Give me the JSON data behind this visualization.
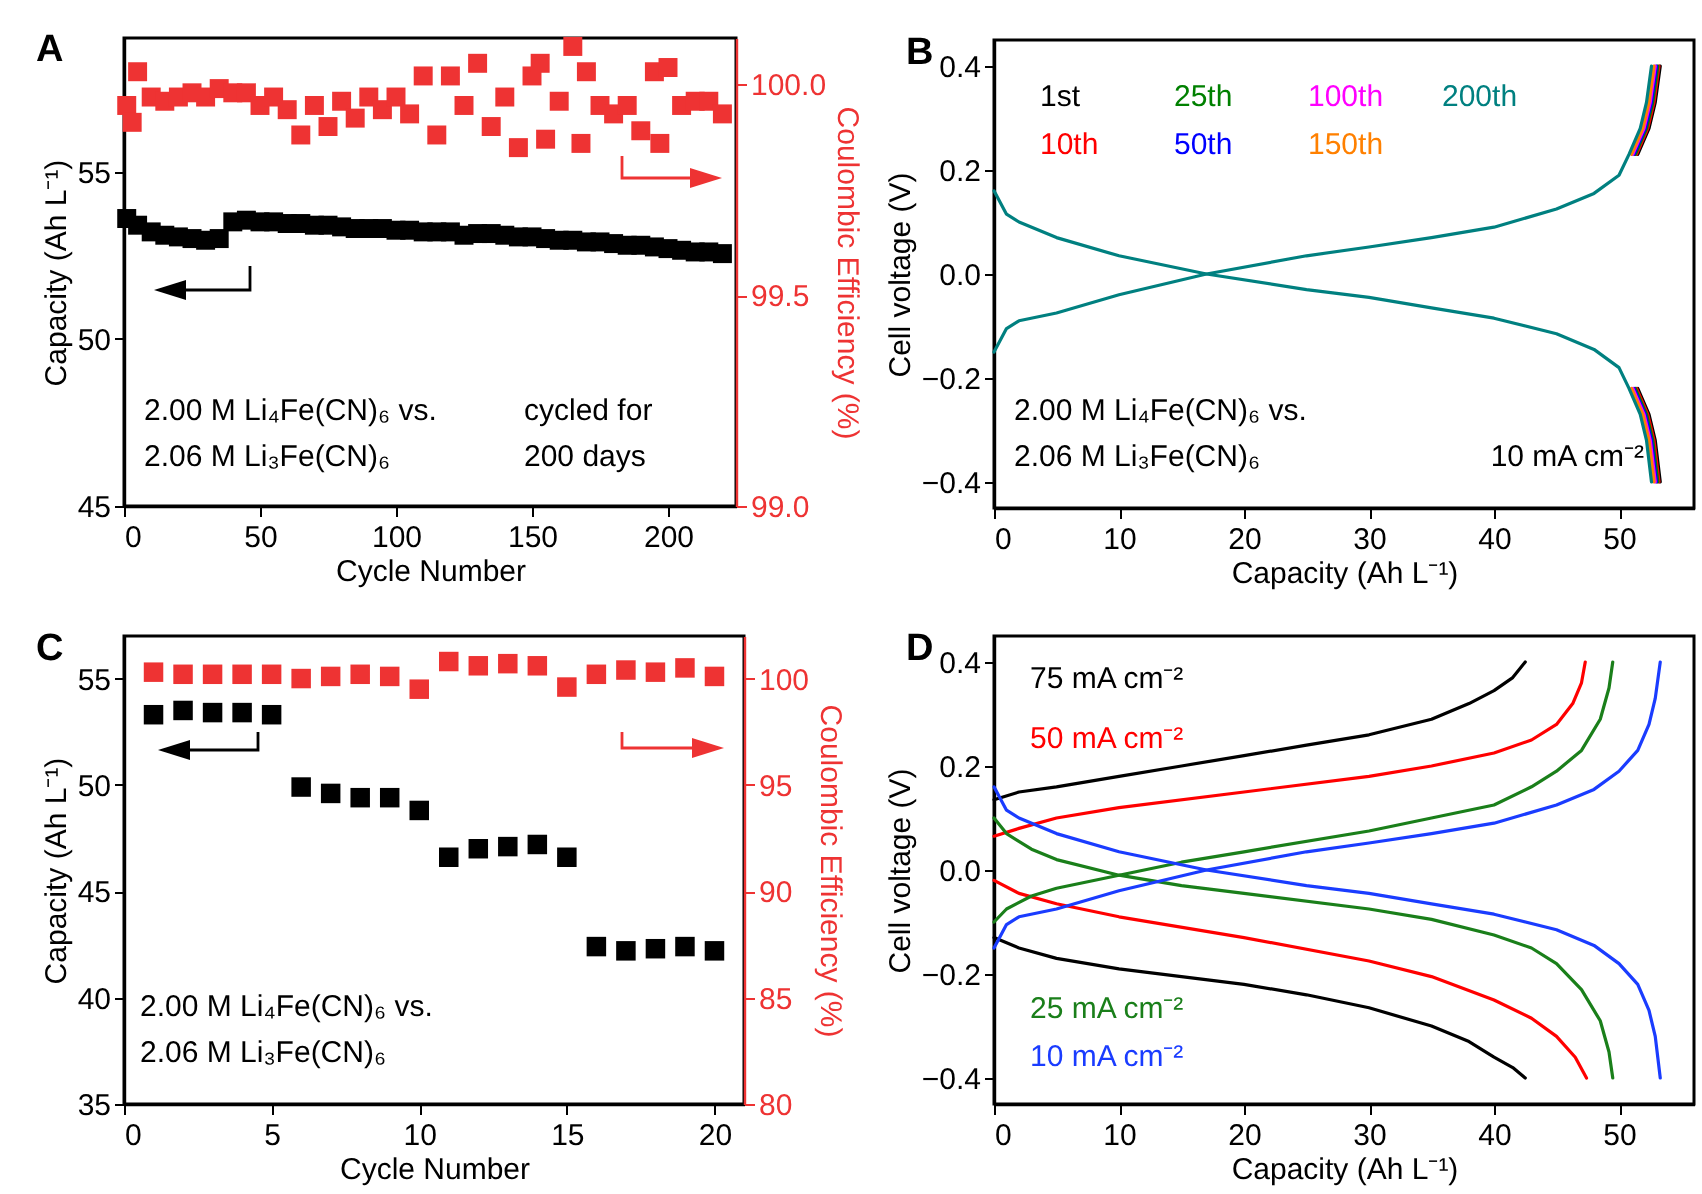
{
  "chart_data": [
    {
      "type": "scatter",
      "title": "A",
      "xlabel": "Cycle Number",
      "ylabel": "Capacity (Ah L⁻¹)",
      "y2label": "Coulombic Efficiency (%)",
      "marker": "square",
      "xlim": [
        0,
        225
      ],
      "xticks": [
        0,
        50,
        100,
        150,
        200
      ],
      "ylim": [
        45,
        59
      ],
      "yticks": [
        45,
        50,
        55
      ],
      "y2lim": [
        99,
        100.11
      ],
      "y2ticks": [
        {
          "value": 99,
          "label": "99.0"
        },
        99.5,
        {
          "value": 100,
          "label": "100.0"
        }
      ],
      "series": [
        {
          "color": "#000000",
          "x": [
            1,
            5,
            10,
            15,
            20,
            25,
            30,
            35,
            40,
            45,
            50,
            55,
            60,
            65,
            70,
            75,
            80,
            85,
            90,
            95,
            100,
            105,
            110,
            115,
            120,
            125,
            130,
            135,
            140,
            145,
            150,
            155,
            160,
            165,
            170,
            175,
            180,
            185,
            190,
            195,
            200,
            205,
            210,
            215,
            220
          ],
          "values": [
            53.6,
            53.4,
            53.2,
            53.1,
            53.05,
            53.0,
            52.95,
            53.0,
            53.5,
            53.55,
            53.5,
            53.5,
            53.45,
            53.45,
            53.4,
            53.4,
            53.35,
            53.3,
            53.3,
            53.3,
            53.25,
            53.25,
            53.2,
            53.2,
            53.2,
            53.1,
            53.15,
            53.15,
            53.1,
            53.05,
            53.05,
            53.0,
            52.95,
            52.95,
            52.9,
            52.9,
            52.85,
            52.8,
            52.8,
            52.75,
            52.7,
            52.65,
            52.6,
            52.6,
            52.55
          ]
        },
        {
          "color": "#ee3333",
          "axis": "y2",
          "x": [
            1,
            3,
            5,
            10,
            15,
            20,
            25,
            30,
            35,
            40,
            45,
            50,
            55,
            60,
            65,
            70,
            75,
            80,
            85,
            90,
            95,
            100,
            105,
            110,
            115,
            120,
            125,
            130,
            135,
            140,
            145,
            150,
            153,
            155,
            160,
            165,
            168,
            170,
            175,
            180,
            185,
            190,
            195,
            197,
            200,
            205,
            210,
            215,
            220
          ],
          "values": [
            99.95,
            99.91,
            100.03,
            99.97,
            99.96,
            99.97,
            99.98,
            99.97,
            99.99,
            99.98,
            99.98,
            99.95,
            99.97,
            99.94,
            99.88,
            99.95,
            99.9,
            99.96,
            99.92,
            99.97,
            99.94,
            99.97,
            99.93,
            100.02,
            99.88,
            100.02,
            99.95,
            100.05,
            99.9,
            99.97,
            99.85,
            100.02,
            100.05,
            99.87,
            99.96,
            100.09,
            99.86,
            100.03,
            99.95,
            99.93,
            99.95,
            99.89,
            100.03,
            99.86,
            100.04,
            99.95,
            99.96,
            99.96,
            99.93
          ]
        }
      ],
      "annotations": [
        "2.00 M Li₄Fe(CN)₆ vs.",
        "2.06 M Li₃Fe(CN)₆",
        "cycled for",
        "200 days"
      ]
    },
    {
      "type": "line",
      "title": "B",
      "xlabel": "Capacity (Ah L⁻¹)",
      "ylabel": "Cell voltage (V)",
      "line_style": "solid",
      "legend": "top left",
      "xlim": [
        0,
        56
      ],
      "xticks": [
        0,
        10,
        20,
        30,
        40,
        50
      ],
      "ylim": [
        -0.45,
        0.45
      ],
      "yticks": [
        -0.4,
        -0.2,
        {
          "value": 0,
          "label": "0.0"
        },
        0.2,
        0.4
      ],
      "series": [
        {
          "name": "1st",
          "color": "#000000",
          "x": [
            51.5,
            52.4,
            52.9,
            53.3,
            null,
            51.5,
            52.4,
            52.9,
            53.3
          ],
          "values": [
            0.23,
            0.28,
            0.33,
            0.4,
            null,
            -0.22,
            -0.27,
            -0.32,
            -0.4
          ]
        },
        {
          "name": "10th",
          "color": "#ff0000",
          "x": [
            51.4,
            52.3,
            52.8,
            53.2,
            null,
            51.4,
            52.3,
            52.8,
            53.2
          ],
          "values": [
            0.23,
            0.28,
            0.33,
            0.4,
            null,
            -0.22,
            -0.27,
            -0.32,
            -0.4
          ]
        },
        {
          "name": "25th",
          "color": "#008000",
          "x": [
            51.3,
            52.2,
            52.7,
            53.1,
            null,
            51.3,
            52.2,
            52.7,
            53.1
          ],
          "values": [
            0.23,
            0.28,
            0.33,
            0.4,
            null,
            -0.22,
            -0.27,
            -0.32,
            -0.4
          ]
        },
        {
          "name": "50th",
          "color": "#0000ff",
          "x": [
            51.2,
            52.1,
            52.6,
            53.0,
            null,
            51.2,
            52.1,
            52.6,
            53.0
          ],
          "values": [
            0.23,
            0.28,
            0.33,
            0.4,
            null,
            -0.22,
            -0.27,
            -0.32,
            -0.4
          ]
        },
        {
          "name": "100th",
          "color": "#ff00ff",
          "x": [
            51.1,
            52.0,
            52.5,
            52.9,
            null,
            51.1,
            52.0,
            52.5,
            52.9
          ],
          "values": [
            0.23,
            0.28,
            0.33,
            0.4,
            null,
            -0.22,
            -0.27,
            -0.32,
            -0.4
          ]
        },
        {
          "name": "150th",
          "color": "#ff8000",
          "x": [
            51.0,
            51.9,
            52.4,
            52.8,
            null,
            51.0,
            51.9,
            52.4,
            52.8
          ],
          "values": [
            0.23,
            0.28,
            0.33,
            0.4,
            null,
            -0.22,
            -0.27,
            -0.32,
            -0.4
          ]
        },
        {
          "name": "200th",
          "color": "#008080",
          "x": [
            0,
            1,
            2,
            5,
            10,
            17,
            25,
            30,
            35,
            40,
            45,
            48,
            50,
            50.8,
            51.7,
            52.2,
            52.6,
            null,
            0,
            1,
            2,
            5,
            10,
            17,
            25,
            30,
            35,
            40,
            45,
            48,
            50,
            50.8,
            51.7,
            52.2,
            52.6
          ],
          "values": [
            -0.15,
            -0.105,
            -0.09,
            -0.075,
            -0.04,
            0,
            0.035,
            0.052,
            0.07,
            0.09,
            0.125,
            0.155,
            0.19,
            0.23,
            0.28,
            0.33,
            0.4,
            null,
            0.16,
            0.115,
            0.1,
            0.07,
            0.035,
            0,
            -0.03,
            -0.045,
            -0.065,
            -0.085,
            -0.115,
            -0.145,
            -0.18,
            -0.22,
            -0.27,
            -0.32,
            -0.4
          ]
        }
      ],
      "annotations": [
        "2.00 M Li₄Fe(CN)₆ vs.",
        "2.06 M Li₃Fe(CN)₆",
        "10 mA cm⁻²"
      ]
    },
    {
      "type": "scatter",
      "title": "C",
      "xlabel": "Cycle Number",
      "ylabel": "Capacity (Ah L⁻¹)",
      "y2label": "Coulombic Efficiency (%)",
      "marker": "square",
      "xlim": [
        0,
        21
      ],
      "xticks": [
        0,
        5,
        10,
        15,
        20
      ],
      "ylim": [
        35,
        57
      ],
      "yticks": [
        35,
        40,
        45,
        50,
        55
      ],
      "y2lim": [
        80,
        102
      ],
      "y2ticks": [
        80,
        85,
        90,
        95,
        100
      ],
      "x": [
        1,
        2,
        3,
        4,
        5,
        6,
        7,
        8,
        9,
        10,
        11,
        12,
        13,
        14,
        15,
        16,
        17,
        18,
        19,
        20
      ],
      "series": [
        {
          "color": "#000000",
          "values": [
            53.3,
            53.5,
            53.4,
            53.4,
            53.3,
            49.9,
            49.6,
            49.4,
            49.4,
            48.8,
            46.6,
            47.0,
            47.1,
            47.2,
            46.6,
            42.4,
            42.2,
            42.3,
            42.4,
            42.2
          ]
        },
        {
          "color": "#ee3333",
          "axis": "y2",
          "values": [
            100.3,
            100.2,
            100.2,
            100.2,
            100.2,
            100.0,
            100.1,
            100.2,
            100.1,
            99.5,
            100.8,
            100.6,
            100.7,
            100.6,
            99.6,
            100.2,
            100.4,
            100.3,
            100.5,
            100.1
          ]
        }
      ],
      "annotations": [
        "2.00 M Li₄Fe(CN)₆ vs.",
        "2.06 M Li₃Fe(CN)₆"
      ]
    },
    {
      "type": "line",
      "title": "D",
      "xlabel": "Capacity (Ah L⁻¹)",
      "ylabel": "Cell voltage (V)",
      "line_style": "solid",
      "legend": "left",
      "xlim": [
        0,
        56
      ],
      "xticks": [
        0,
        10,
        20,
        30,
        40,
        50
      ],
      "ylim": [
        -0.45,
        0.45
      ],
      "yticks": [
        -0.4,
        -0.2,
        {
          "value": 0,
          "label": "0.0"
        },
        0.2,
        0.4
      ],
      "series": [
        {
          "name": "75 mA cm⁻²",
          "color": "#000000",
          "x": [
            0,
            2,
            5,
            10,
            15,
            20,
            25,
            30,
            35,
            38,
            40,
            41.5,
            42.5,
            null,
            0,
            2,
            5,
            10,
            15,
            20,
            25,
            30,
            35,
            38,
            40,
            41.5,
            42.5
          ],
          "values": [
            0.135,
            0.15,
            0.16,
            0.18,
            0.2,
            0.22,
            0.24,
            0.26,
            0.29,
            0.32,
            0.345,
            0.37,
            0.4,
            null,
            -0.13,
            -0.15,
            -0.17,
            -0.19,
            -0.205,
            -0.22,
            -0.24,
            -0.265,
            -0.3,
            -0.33,
            -0.36,
            -0.38,
            -0.4
          ]
        },
        {
          "name": "50 mA cm⁻²",
          "color": "#ff0000",
          "x": [
            0,
            2,
            5,
            10,
            20,
            30,
            35,
            40,
            43,
            45,
            46.3,
            47,
            47.3,
            null,
            0,
            2,
            5,
            10,
            20,
            30,
            35,
            40,
            43,
            45,
            46.5,
            47.4
          ],
          "values": [
            0.065,
            0.08,
            0.1,
            0.12,
            0.15,
            0.18,
            0.2,
            0.225,
            0.25,
            0.28,
            0.32,
            0.36,
            0.4,
            null,
            -0.02,
            -0.045,
            -0.065,
            -0.09,
            -0.13,
            -0.175,
            -0.205,
            -0.25,
            -0.285,
            -0.32,
            -0.36,
            -0.4
          ]
        },
        {
          "name": "25 mA cm⁻²",
          "color": "#1a7f1a",
          "x": [
            0,
            1,
            3,
            5,
            10,
            15,
            20,
            30,
            35,
            40,
            43,
            45,
            47,
            48.5,
            49.2,
            49.5,
            null,
            0,
            1,
            3,
            5,
            10,
            15,
            20,
            30,
            35,
            40,
            43,
            45,
            47,
            48.5,
            49.2,
            49.5
          ],
          "values": [
            -0.1,
            -0.075,
            -0.05,
            -0.035,
            -0.01,
            0.015,
            0.035,
            0.075,
            0.1,
            0.125,
            0.16,
            0.19,
            0.23,
            0.29,
            0.35,
            0.4,
            null,
            0.1,
            0.07,
            0.04,
            0.02,
            -0.01,
            -0.03,
            -0.045,
            -0.075,
            -0.095,
            -0.125,
            -0.15,
            -0.18,
            -0.23,
            -0.29,
            -0.35,
            -0.4
          ]
        },
        {
          "name": "10 mA cm⁻²",
          "color": "#1a3cff",
          "x": [
            0,
            1,
            2,
            5,
            10,
            17,
            25,
            30,
            35,
            40,
            45,
            48,
            50,
            51.5,
            52.4,
            52.9,
            53.3,
            null,
            0,
            1,
            2,
            5,
            10,
            17,
            25,
            30,
            35,
            40,
            45,
            48,
            50,
            51.5,
            52.4,
            52.9,
            53.3
          ],
          "values": [
            -0.15,
            -0.105,
            -0.09,
            -0.075,
            -0.04,
            0,
            0.035,
            0.052,
            0.07,
            0.09,
            0.125,
            0.155,
            0.19,
            0.23,
            0.28,
            0.33,
            0.4,
            null,
            0.16,
            0.115,
            0.1,
            0.07,
            0.035,
            0,
            -0.03,
            -0.045,
            -0.065,
            -0.085,
            -0.115,
            -0.145,
            -0.18,
            -0.22,
            -0.27,
            -0.32,
            -0.4
          ]
        }
      ]
    }
  ]
}
